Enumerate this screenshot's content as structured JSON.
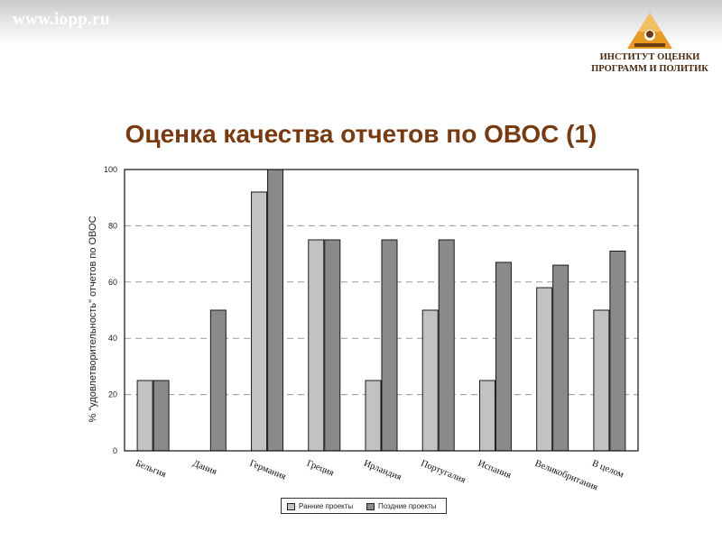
{
  "header": {
    "site_url": "www.iopp.ru",
    "logo_line1": "ИНСТИТУТ ОЦЕНКИ",
    "logo_line2": "ПРОГРАММ И ПОЛИТИК"
  },
  "page_title": "Оценка качества отчетов по ОВОС (1)",
  "colors": {
    "early": "#c2c2c2",
    "late": "#8a8a8a",
    "title": "#7a3a10",
    "logo_gold": "#e89a1e",
    "logo_brown": "#6b3a16"
  },
  "chart_data": {
    "type": "bar",
    "categories": [
      "Бельгия",
      "Дания",
      "Германия",
      "Греция",
      "Ирландия",
      "Португалия",
      "Испания",
      "Великобритания",
      "В целом"
    ],
    "series": [
      {
        "name": "Ранние проекты",
        "values": [
          25,
          null,
          92,
          75,
          25,
          50,
          25,
          58,
          50
        ]
      },
      {
        "name": "Поздние проекты",
        "values": [
          25,
          50,
          100,
          75,
          75,
          75,
          67,
          66,
          71
        ]
      }
    ],
    "ylabel": "% \"удовлетворительность\" отчетов по ОВОС",
    "xlabel": "",
    "ylim": [
      0,
      100
    ],
    "yticks": [
      "0",
      "20",
      "40",
      "60",
      "80",
      "100"
    ],
    "grid": "dashed horizontal",
    "legend_position": "bottom"
  }
}
